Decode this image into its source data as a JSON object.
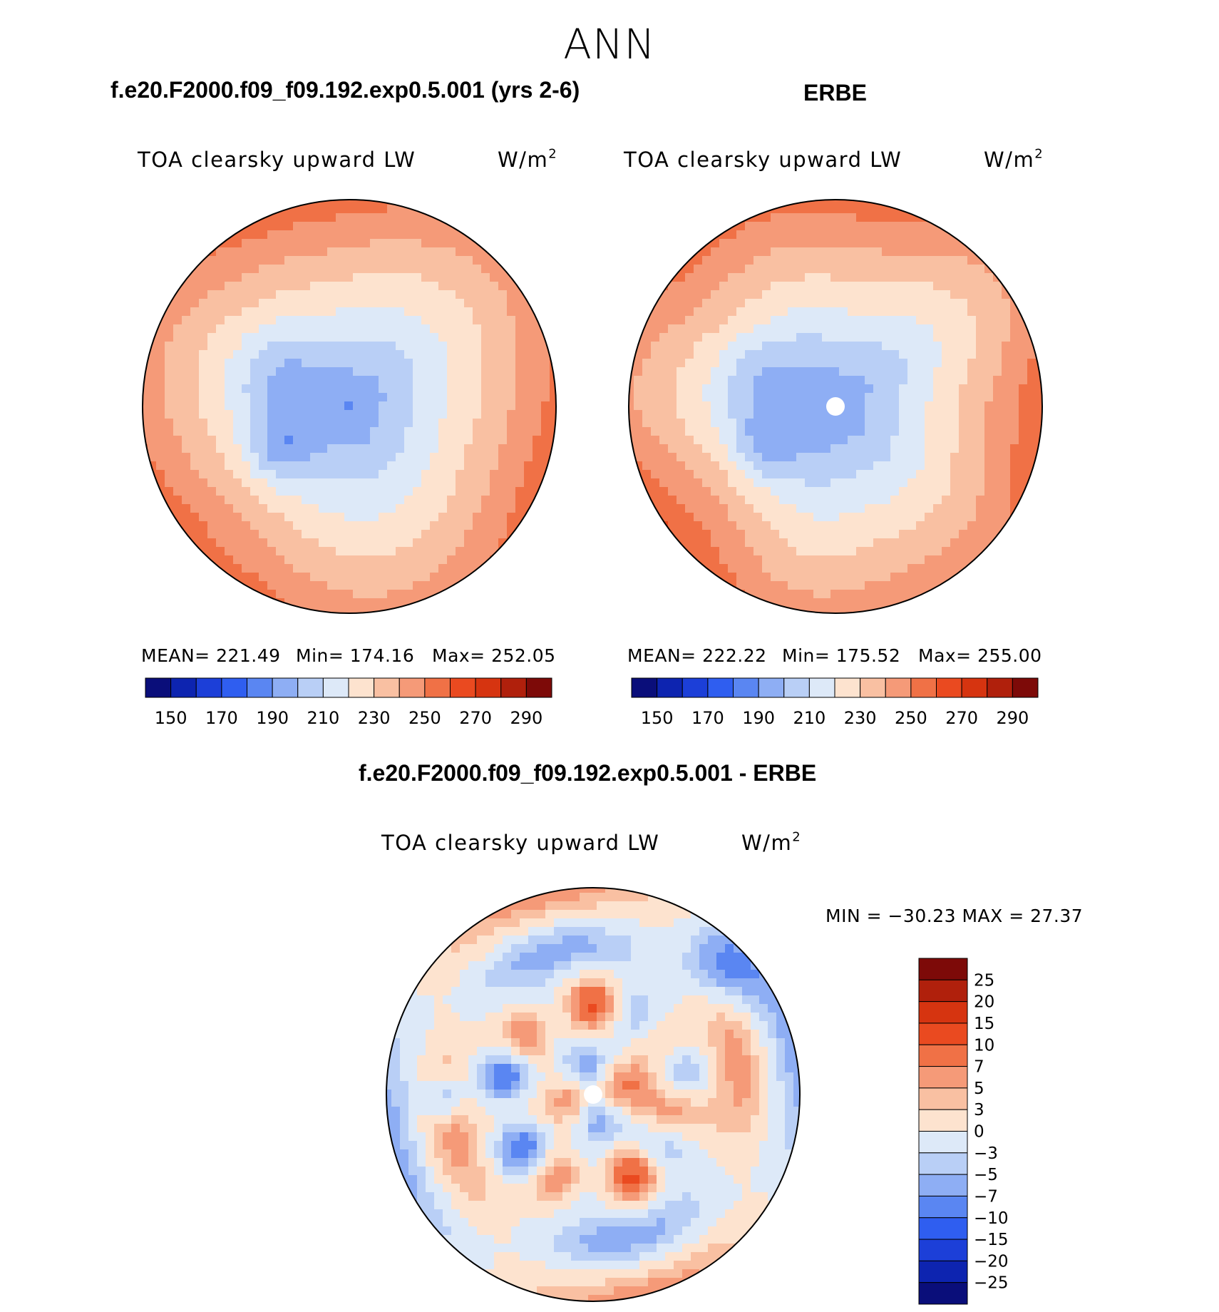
{
  "figure": {
    "title": "ANN",
    "model_title": "f.e20.F2000.f09_f09.192.exp0.5.001 (yrs 2-6)",
    "obs_title": "ERBE",
    "diff_title": "f.e20.F2000.f09_f09.192.exp0.5.001 - ERBE"
  },
  "chart_data": [
    {
      "type": "heatmap",
      "name": "model",
      "projection": "north-polar-stereographic",
      "variable": "TOA clearsky upward LW",
      "units_base": "W/m",
      "units_exp": "2",
      "mean_label": "MEAN= 221.49",
      "min_label": "Min= 174.16",
      "max_label": "Max= 252.05",
      "mean": 221.49,
      "min": 174.16,
      "max": 252.05,
      "colorbar_ticks": [
        "150",
        "170",
        "190",
        "210",
        "230",
        "250",
        "270",
        "290"
      ],
      "colors": [
        "#0a0e7a",
        "#0d24b0",
        "#1c3fd8",
        "#2f5ef0",
        "#5a86f2",
        "#8eaef4",
        "#b9cff6",
        "#dde9f8",
        "#fde3cf",
        "#f9c0a2",
        "#f59a78",
        "#f07146",
        "#ea4a20",
        "#d63410",
        "#b0200c",
        "#7d0a08"
      ]
    },
    {
      "type": "heatmap",
      "name": "observations",
      "projection": "north-polar-stereographic",
      "variable": "TOA clearsky upward LW",
      "units_base": "W/m",
      "units_exp": "2",
      "mean_label": "MEAN= 222.22",
      "min_label": "Min= 175.52",
      "max_label": "Max= 255.00",
      "mean": 222.22,
      "min": 175.52,
      "max": 255.0,
      "colorbar_ticks": [
        "150",
        "170",
        "190",
        "210",
        "230",
        "250",
        "270",
        "290"
      ],
      "colors": [
        "#0a0e7a",
        "#0d24b0",
        "#1c3fd8",
        "#2f5ef0",
        "#5a86f2",
        "#8eaef4",
        "#b9cff6",
        "#dde9f8",
        "#fde3cf",
        "#f9c0a2",
        "#f59a78",
        "#f07146",
        "#ea4a20",
        "#d63410",
        "#b0200c",
        "#7d0a08"
      ]
    },
    {
      "type": "heatmap",
      "name": "difference",
      "projection": "north-polar-stereographic",
      "variable": "TOA clearsky upward LW",
      "units_base": "W/m",
      "units_exp": "2",
      "minmax_label": "MIN = −30.23 MAX =  27.37",
      "min": -30.23,
      "max": 27.37,
      "colorbar_ticks": [
        "25",
        "20",
        "15",
        "10",
        "7",
        "5",
        "3",
        "0",
        "−3",
        "−5",
        "−7",
        "−10",
        "−15",
        "−20",
        "−25"
      ],
      "colors": [
        "#7d0a08",
        "#b0200c",
        "#d63410",
        "#ea4a20",
        "#f07146",
        "#f59a78",
        "#f9c0a2",
        "#fde3cf",
        "#dde9f8",
        "#b9cff6",
        "#8eaef4",
        "#5a86f2",
        "#2f5ef0",
        "#1c3fd8",
        "#0d24b0",
        "#0a0e7a"
      ]
    }
  ]
}
